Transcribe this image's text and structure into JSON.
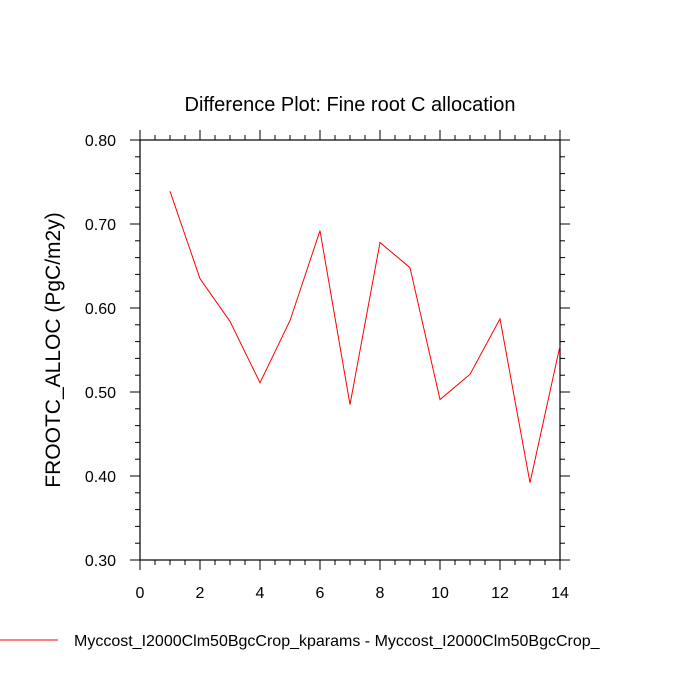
{
  "chart_data": {
    "type": "line",
    "title": "Difference Plot: Fine root C allocation",
    "xlabel": "",
    "ylabel": "FROOTC_ALLOC  (PgC/m2y)",
    "xlim": [
      0,
      14
    ],
    "ylim": [
      0.3,
      0.8
    ],
    "x_ticks": [
      "0",
      "2",
      "4",
      "6",
      "8",
      "10",
      "12",
      "14"
    ],
    "x_tick_values": [
      0,
      2,
      4,
      6,
      8,
      10,
      12,
      14
    ],
    "y_ticks": [
      "0.30",
      "0.40",
      "0.50",
      "0.60",
      "0.70",
      "0.80"
    ],
    "y_tick_values": [
      0.3,
      0.4,
      0.5,
      0.6,
      0.7,
      0.8
    ],
    "grid": false,
    "legend_position": "bottom",
    "series": [
      {
        "name": "Myccost_I2000Clm50BgcCrop_kparams - Myccost_I2000Clm50BgcCrop_",
        "color": "#ff0000",
        "x": [
          1,
          2,
          3,
          4,
          5,
          6,
          7,
          8,
          9,
          10,
          11,
          12,
          13,
          14
        ],
        "y": [
          0.739,
          0.635,
          0.584,
          0.511,
          0.585,
          0.692,
          0.485,
          0.678,
          0.648,
          0.491,
          0.521,
          0.587,
          0.392,
          0.555
        ]
      }
    ]
  }
}
